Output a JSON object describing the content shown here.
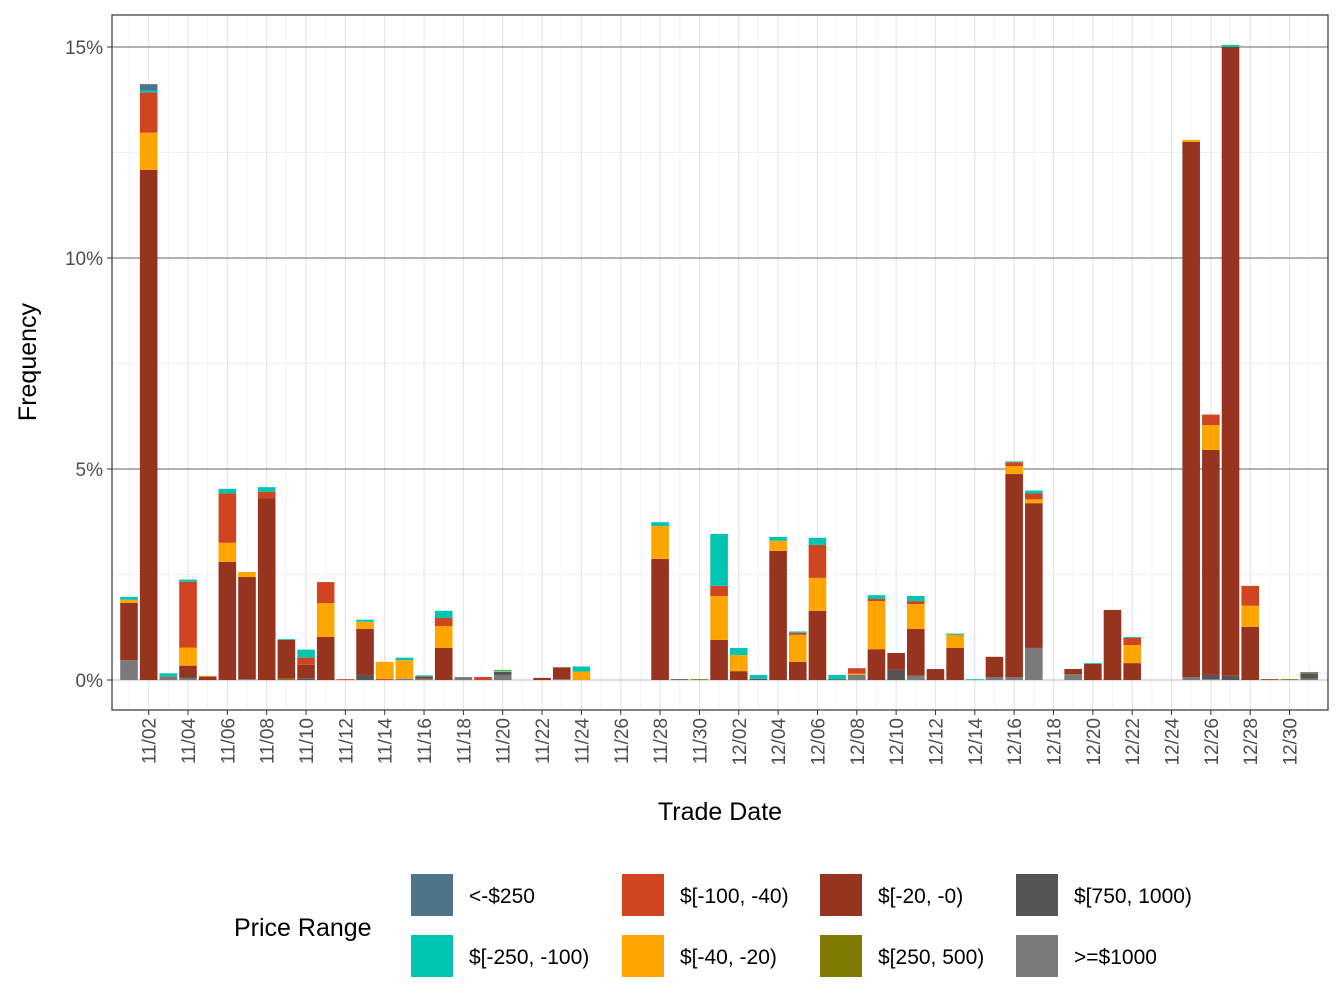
{
  "chart_data": {
    "type": "bar",
    "stacked": true,
    "xlabel": "Trade Date",
    "ylabel": "Frequency",
    "y_unit": "%",
    "ylim": [
      0,
      15.8
    ],
    "yticks": [
      0,
      5,
      10,
      15
    ],
    "ytick_labels": [
      "0%",
      "5%",
      "10%",
      "15%"
    ],
    "grid": true,
    "legend_title": "Price Range",
    "legend_position": "bottom",
    "categories": [
      "11/01",
      "11/02",
      "11/03",
      "11/04",
      "11/05",
      "11/06",
      "11/07",
      "11/08",
      "11/09",
      "11/10",
      "11/11",
      "11/12",
      "11/13",
      "11/14",
      "11/15",
      "11/16",
      "11/17",
      "11/18",
      "11/19",
      "11/20",
      "11/21",
      "11/22",
      "11/23",
      "11/24",
      "11/25",
      "11/26",
      "11/27",
      "11/28",
      "11/29",
      "11/30",
      "12/01",
      "12/02",
      "12/03",
      "12/04",
      "12/05",
      "12/06",
      "12/07",
      "12/08",
      "12/09",
      "12/10",
      "12/11",
      "12/12",
      "12/13",
      "12/14",
      "12/15",
      "12/16",
      "12/17",
      "12/18",
      "12/19",
      "12/20",
      "12/21",
      "12/22",
      "12/23",
      "12/24",
      "12/25",
      "12/26",
      "12/27",
      "12/28",
      "12/29",
      "12/30",
      "12/31"
    ],
    "xtick_labels": [
      "11/02",
      "11/04",
      "11/06",
      "11/08",
      "11/10",
      "11/12",
      "11/14",
      "11/16",
      "11/18",
      "11/20",
      "11/22",
      "11/24",
      "11/26",
      "11/28",
      "11/30",
      "12/02",
      "12/04",
      "12/06",
      "12/08",
      "12/10",
      "12/12",
      "12/14",
      "12/16",
      "12/18",
      "12/20",
      "12/22",
      "12/24",
      "12/26",
      "12/28",
      "12/30"
    ],
    "series": [
      {
        "name": "<-$250",
        "color": "#4E7489",
        "values": {
          "11/02": 0.15
        }
      },
      {
        "name": "$[-250, -100)",
        "color": "#00C5B0",
        "values": {
          "11/01": 0.07,
          "11/02": 0.05,
          "11/03": 0.07,
          "11/04": 0.05,
          "11/06": 0.11,
          "11/08": 0.11,
          "11/09": 0.02,
          "11/10": 0.19,
          "11/13": 0.05,
          "11/15": 0.06,
          "11/16": 0.03,
          "11/17": 0.17,
          "11/20": 0.03,
          "11/24": 0.12,
          "11/28": 0.09,
          "12/01": 1.23,
          "12/02": 0.17,
          "12/03": 0.09,
          "12/04": 0.09,
          "12/05": 0.03,
          "12/06": 0.17,
          "12/07": 0.1,
          "12/09": 0.09,
          "12/11": 0.12,
          "12/13": 0.03,
          "12/14": 0.02,
          "12/16": 0.02,
          "12/17": 0.07,
          "12/20": 0.02,
          "12/22": 0.02,
          "12/27": 0.05,
          "12/31": 0.01
        }
      },
      {
        "name": "$[-100, -40)",
        "color": "#D04520",
        "values": {
          "11/02": 0.95,
          "11/04": 1.56,
          "11/06": 1.17,
          "11/08": 0.15,
          "11/10": 0.17,
          "11/11": 0.5,
          "11/12": 0.02,
          "11/17": 0.19,
          "11/19": 0.07,
          "12/01": 0.24,
          "12/05": 0.05,
          "12/06": 0.78,
          "12/08": 0.13,
          "12/09": 0.05,
          "12/11": 0.07,
          "12/16": 0.09,
          "12/17": 0.14,
          "12/22": 0.17,
          "12/26": 0.25,
          "12/28": 0.47,
          "12/31": 0.03
        }
      },
      {
        "name": "$[-40, -20)",
        "color": "#FFA500",
        "values": {
          "11/01": 0.07,
          "11/02": 0.88,
          "11/04": 0.43,
          "11/05": 0.02,
          "11/06": 0.45,
          "11/07": 0.12,
          "11/11": 0.8,
          "11/13": 0.17,
          "11/14": 0.41,
          "11/15": 0.44,
          "11/17": 0.52,
          "11/20": 0.02,
          "11/24": 0.2,
          "11/28": 0.78,
          "12/01": 1.04,
          "12/02": 0.38,
          "12/04": 0.24,
          "12/05": 0.64,
          "12/06": 0.78,
          "12/08": 0.03,
          "12/09": 1.14,
          "12/11": 0.59,
          "12/13": 0.31,
          "12/16": 0.19,
          "12/17": 0.09,
          "12/22": 0.43,
          "12/25": 0.05,
          "12/26": 0.59,
          "12/28": 0.5
        }
      },
      {
        "name": "$[-20, -0)",
        "color": "#96341F",
        "values": {
          "11/01": 1.36,
          "11/02": 12.09,
          "11/04": 0.27,
          "11/05": 0.08,
          "11/06": 2.8,
          "11/07": 2.42,
          "11/08": 4.31,
          "11/09": 0.92,
          "11/10": 0.32,
          "11/11": 1.02,
          "11/13": 1.09,
          "11/14": 0.02,
          "11/16": 0.05,
          "11/17": 0.76,
          "11/22": 0.05,
          "11/23": 0.28,
          "11/28": 2.87,
          "12/01": 0.95,
          "12/02": 0.21,
          "12/04": 3.06,
          "12/05": 0.43,
          "12/06": 1.64,
          "12/09": 0.73,
          "12/10": 0.4,
          "12/11": 1.11,
          "12/12": 0.26,
          "12/13": 0.76,
          "12/15": 0.48,
          "12/16": 4.81,
          "12/17": 3.43,
          "12/19": 0.12,
          "12/20": 0.38,
          "12/21": 1.66,
          "12/22": 0.4,
          "12/25": 12.68,
          "12/26": 5.33,
          "12/27": 14.9,
          "12/28": 1.26,
          "12/29": 0.02
        }
      },
      {
        "name": "$[250, 500)",
        "color": "#7F7A00",
        "values": {
          "11/09": 0.03,
          "11/30": 0.02,
          "12/30": 0.02
        }
      },
      {
        "name": "$[750, 1000)",
        "color": "#555555",
        "values": {
          "11/04": 0.04,
          "11/10": 0.04,
          "11/13": 0.12,
          "11/20": 0.07,
          "11/29": 0.02,
          "12/03": 0.03,
          "12/07": 0.02,
          "12/10": 0.24,
          "12/26": 0.1,
          "12/27": 0.1,
          "12/31": 0.12
        }
      },
      {
        "name": ">=$1000",
        "color": "#7A7A7A",
        "values": {
          "11/01": 0.47,
          "11/03": 0.09,
          "11/04": 0.03,
          "11/07": 0.02,
          "11/15": 0.03,
          "11/16": 0.03,
          "11/18": 0.07,
          "11/20": 0.12,
          "11/23": 0.02,
          "12/08": 0.12,
          "12/11": 0.1,
          "12/15": 0.07,
          "12/16": 0.07,
          "12/17": 0.76,
          "12/19": 0.14,
          "12/25": 0.07,
          "12/26": 0.02,
          "12/31": 0.03
        }
      }
    ]
  }
}
